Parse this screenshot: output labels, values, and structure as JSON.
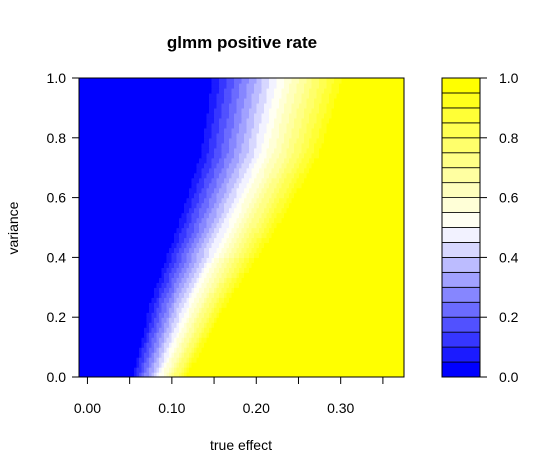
{
  "chart_data": {
    "type": "filled-contour",
    "title": "glmm positive rate",
    "xlabel": "true effect",
    "ylabel": "variance",
    "xlim": [
      -0.01,
      0.375
    ],
    "ylim": [
      0,
      1
    ],
    "x_ticks": [
      0.0,
      0.05,
      0.1,
      0.15,
      0.2,
      0.25,
      0.3,
      0.35
    ],
    "x_tick_labels": [
      "0.00",
      "0.10",
      "0.20",
      "0.30"
    ],
    "x_tick_label_values": [
      0.0,
      0.1,
      0.2,
      0.3
    ],
    "y_ticks": [
      0.0,
      0.2,
      0.4,
      0.6,
      0.8,
      1.0
    ],
    "y_tick_labels": [
      "0.0",
      "0.2",
      "0.4",
      "0.6",
      "0.8",
      "1.0"
    ],
    "grid": {
      "x": [
        0.0,
        0.025,
        0.05,
        0.075,
        0.1,
        0.125,
        0.15,
        0.175,
        0.2,
        0.225,
        0.25,
        0.275,
        0.3,
        0.325,
        0.35,
        0.375
      ],
      "y": [
        0.0,
        0.25,
        0.5,
        0.75,
        1.0
      ],
      "x50_at_y": [
        0.085,
        0.12,
        0.165,
        0.205,
        0.225
      ],
      "transition_width_at_y": [
        0.07,
        0.1,
        0.13,
        0.155,
        0.17
      ]
    },
    "levels": [
      0.0,
      0.05,
      0.1,
      0.15,
      0.2,
      0.25,
      0.3,
      0.35,
      0.4,
      0.45,
      0.5,
      0.55,
      0.6,
      0.65,
      0.7,
      0.75,
      0.8,
      0.85,
      0.9,
      0.95,
      1.0
    ],
    "colorbar": {
      "ticks": [
        0.0,
        0.2,
        0.4,
        0.6,
        0.8,
        1.0
      ],
      "tick_labels": [
        "0.0",
        "0.2",
        "0.4",
        "0.6",
        "0.8",
        "1.0"
      ]
    },
    "palette": {
      "low": "#0000FF",
      "mid": "#FFFFFF",
      "high": "#FFFF00"
    }
  }
}
